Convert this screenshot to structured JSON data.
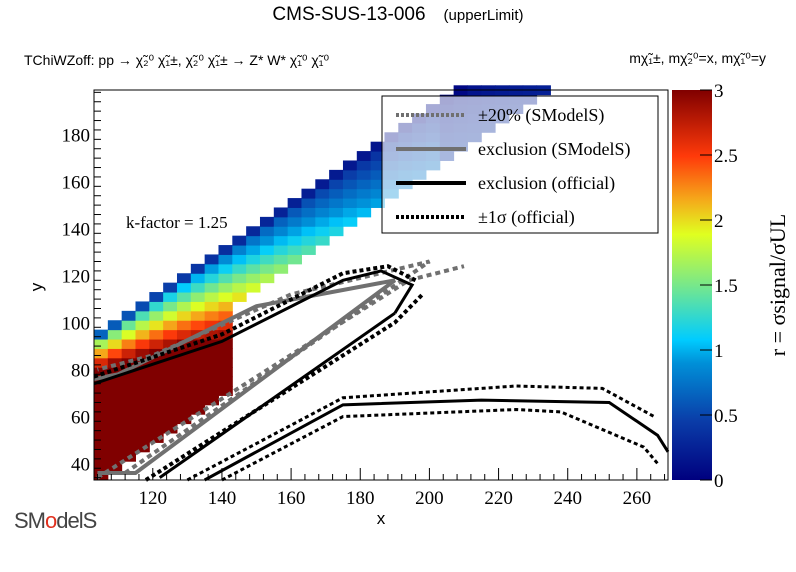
{
  "header": {
    "title": "CMS-SUS-13-006",
    "subtitle": "(upperLimit)",
    "process": "TChiWZoff: pp  → χ̃₂⁰ χ̃₁±, χ̃₂⁰ χ̃₁± → Z* W*  χ̃₁⁰ χ̃₁⁰",
    "mass_label": "mχ̃₁±, mχ̃₂⁰=x, mχ̃₁⁰=y"
  },
  "annotation": "k-factor = 1.25",
  "logo": {
    "text_a": "SM",
    "text_o": "o",
    "text_b": "delS"
  },
  "chart_data": {
    "type": "heatmap",
    "title": "CMS-SUS-13-006 (upperLimit)",
    "xlabel": "x",
    "ylabel": "y",
    "zlabel": "r = σsignal/σUL",
    "xlim": [
      103,
      269
    ],
    "ylim": [
      33,
      199
    ],
    "zlim": [
      0,
      3
    ],
    "xticks": [
      120,
      140,
      160,
      180,
      200,
      220,
      240,
      260
    ],
    "yticks": [
      40,
      60,
      80,
      100,
      120,
      140,
      160,
      180
    ],
    "zticks": [
      0,
      0.5,
      1,
      1.5,
      2,
      2.5,
      3
    ],
    "grid": false,
    "legend_position": "top-right",
    "legend": [
      {
        "label": "±20% (SModelS)",
        "style": "dotted",
        "color": "#707070"
      },
      {
        "label": "exclusion (SModelS)",
        "style": "solid",
        "color": "#707070"
      },
      {
        "label": "exclusion (official)",
        "style": "solid",
        "color": "#000000"
      },
      {
        "label": "±1σ (official)",
        "style": "dotted",
        "color": "#000000"
      }
    ],
    "heatmap_model": {
      "description": "r decreases with mass splitting x-y; band populated for y between x-35 and x-8 approximately",
      "cell_size": [
        4,
        4
      ]
    },
    "curves": {
      "smodels_exclusion": [
        [
          104,
          36
        ],
        [
          115,
          36
        ],
        [
          190,
          118
        ],
        [
          150,
          107
        ],
        [
          110,
          78
        ],
        [
          103,
          76
        ]
      ],
      "smodels_plus20": [
        [
          112,
          36
        ],
        [
          200,
          126
        ],
        [
          160,
          112
        ],
        [
          120,
          86
        ],
        [
          104,
          80
        ]
      ],
      "smodels_minus20": [
        [
          104,
          34
        ],
        [
          194,
          118
        ],
        [
          210,
          124
        ]
      ],
      "official_exclusion_upper": [
        [
          103,
          74
        ],
        [
          140,
          92
        ],
        [
          175,
          118
        ],
        [
          186,
          122
        ],
        [
          195,
          116
        ],
        [
          190,
          104
        ]
      ],
      "official_exclusion_lower": [
        [
          122,
          34
        ],
        [
          190,
          104
        ]
      ],
      "official_exclusion_low": [
        [
          135,
          33
        ],
        [
          175,
          65
        ],
        [
          215,
          67
        ],
        [
          252,
          66
        ],
        [
          266,
          52
        ],
        [
          269,
          45
        ]
      ],
      "official_plus1sigma_low": [
        [
          130,
          33
        ],
        [
          175,
          68
        ],
        [
          225,
          73
        ],
        [
          250,
          72
        ],
        [
          265,
          60
        ]
      ],
      "official_minus1sigma_low": [
        [
          140,
          33
        ],
        [
          175,
          60
        ],
        [
          225,
          63
        ],
        [
          238,
          62
        ],
        [
          262,
          47
        ],
        [
          266,
          40
        ]
      ],
      "official_plus1sigma_upper": [
        [
          103,
          77
        ],
        [
          140,
          95
        ],
        [
          175,
          121
        ],
        [
          188,
          124
        ],
        [
          196,
          118
        ]
      ],
      "official_minus1sigma_upper": [
        [
          118,
          33
        ],
        [
          190,
          100
        ],
        [
          198,
          112
        ]
      ]
    }
  }
}
